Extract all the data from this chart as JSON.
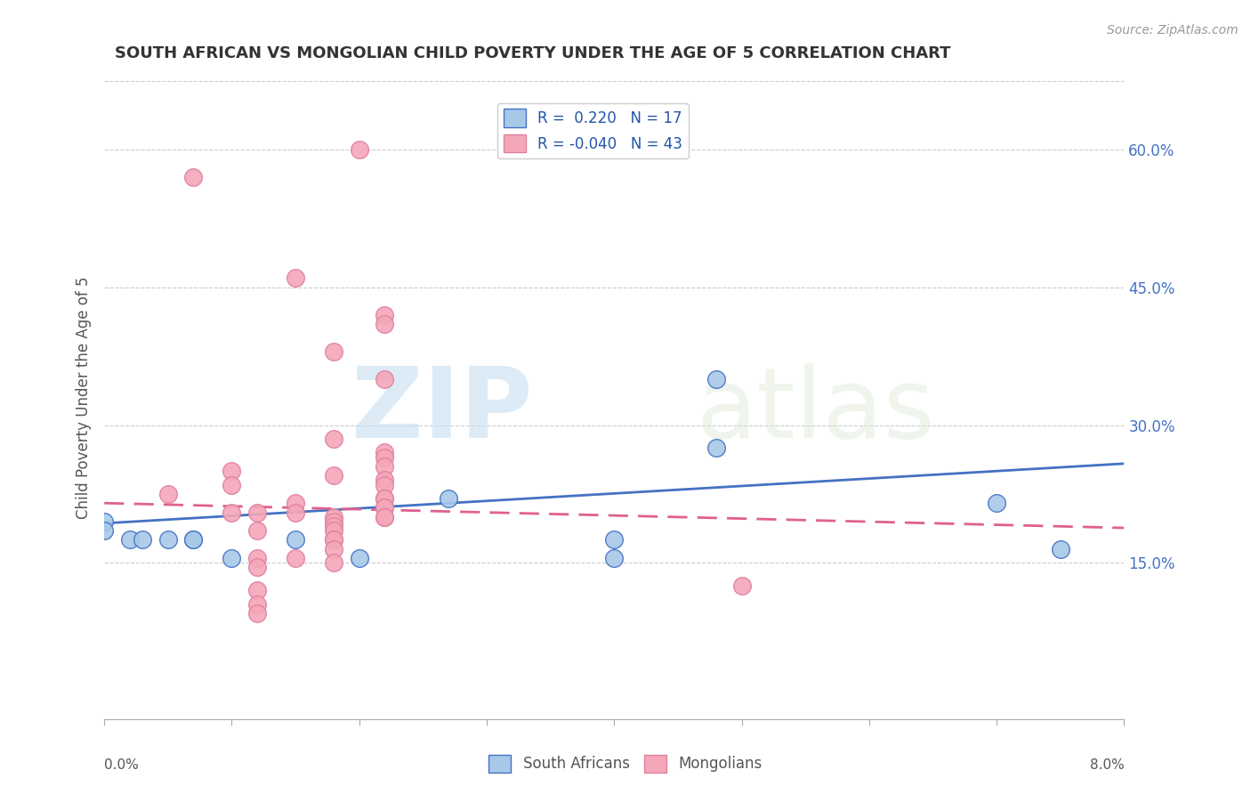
{
  "title": "SOUTH AFRICAN VS MONGOLIAN CHILD POVERTY UNDER THE AGE OF 5 CORRELATION CHART",
  "source": "Source: ZipAtlas.com",
  "ylabel": "Child Poverty Under the Age of 5",
  "right_yticks": [
    0.15,
    0.3,
    0.45,
    0.6
  ],
  "right_yticklabels": [
    "15.0%",
    "30.0%",
    "45.0%",
    "60.0%"
  ],
  "legend_blue_label": "R =  0.220   N = 17",
  "legend_pink_label": "R = -0.040   N = 43",
  "bottom_legend": [
    "South Africans",
    "Mongolians"
  ],
  "blue_color": "#a8c8e8",
  "pink_color": "#f4a7b9",
  "blue_line_color": "#4472c4",
  "pink_line_color": "#e06090",
  "watermark_zip": "ZIP",
  "watermark_atlas": "atlas",
  "xlim": [
    0.0,
    0.08
  ],
  "ylim": [
    -0.02,
    0.68
  ],
  "sa_x": [
    0.0,
    0.0,
    0.002,
    0.003,
    0.005,
    0.007,
    0.007,
    0.01,
    0.015,
    0.02,
    0.027,
    0.04,
    0.04,
    0.048,
    0.048,
    0.07,
    0.075
  ],
  "sa_y": [
    0.195,
    0.185,
    0.175,
    0.175,
    0.175,
    0.175,
    0.175,
    0.155,
    0.175,
    0.155,
    0.22,
    0.175,
    0.155,
    0.35,
    0.275,
    0.215,
    0.165
  ],
  "mn_x": [
    0.007,
    0.02,
    0.015,
    0.022,
    0.022,
    0.018,
    0.022,
    0.018,
    0.022,
    0.022,
    0.022,
    0.01,
    0.018,
    0.022,
    0.01,
    0.022,
    0.005,
    0.022,
    0.022,
    0.015,
    0.022,
    0.022,
    0.012,
    0.015,
    0.01,
    0.018,
    0.022,
    0.022,
    0.018,
    0.018,
    0.018,
    0.012,
    0.018,
    0.018,
    0.018,
    0.012,
    0.015,
    0.018,
    0.012,
    0.012,
    0.012,
    0.012,
    0.05
  ],
  "mn_y": [
    0.57,
    0.6,
    0.46,
    0.42,
    0.41,
    0.38,
    0.35,
    0.285,
    0.27,
    0.265,
    0.255,
    0.25,
    0.245,
    0.24,
    0.235,
    0.235,
    0.225,
    0.22,
    0.22,
    0.215,
    0.21,
    0.21,
    0.205,
    0.205,
    0.205,
    0.2,
    0.2,
    0.2,
    0.195,
    0.19,
    0.185,
    0.185,
    0.175,
    0.175,
    0.165,
    0.155,
    0.155,
    0.15,
    0.145,
    0.12,
    0.105,
    0.095,
    0.125
  ],
  "blue_trend_x": [
    0.0,
    0.08
  ],
  "blue_trend_y": [
    0.193,
    0.258
  ],
  "pink_trend_x": [
    0.0,
    0.08
  ],
  "pink_trend_y": [
    0.215,
    0.188
  ]
}
